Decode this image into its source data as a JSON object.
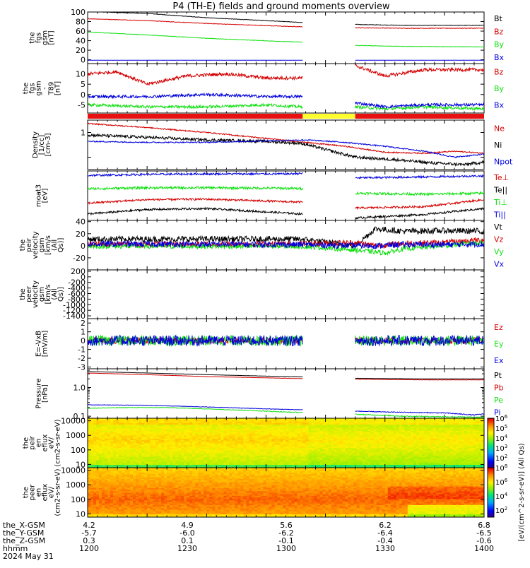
{
  "title": "P4 (TH-E) fields and ground moments overview",
  "colors": {
    "black": "#000000",
    "red": "#d40000",
    "green": "#10e010",
    "blue": "#0000dd",
    "yellow": "#ffff30",
    "mode_red": "#e81010"
  },
  "chart_data": [
    {
      "type": "line",
      "ylabel": "the fgs gsm [nT]",
      "ylim": [
        -8,
        100
      ],
      "yticks": [
        0,
        20,
        40,
        60,
        80,
        100
      ],
      "yticklabels": [
        "0",
        "20",
        "40",
        "60",
        "80",
        "100"
      ],
      "gap_minutes": [
        1308.5,
        1335.0
      ],
      "series": [
        {
          "name": "Bt",
          "color": "#000000",
          "x": [
            1200,
            1230,
            1260,
            1300,
            1308,
            1335,
            1360,
            1400
          ],
          "y": [
            101,
            97,
            88,
            80,
            78,
            74,
            72,
            72
          ],
          "noise": 0.5
        },
        {
          "name": "Bz",
          "color": "#d40000",
          "x": [
            1200,
            1230,
            1260,
            1300,
            1308,
            1335,
            1360,
            1400
          ],
          "y": [
            86,
            82,
            76,
            70,
            69,
            67,
            66,
            66
          ],
          "noise": 0.6
        },
        {
          "name": "By",
          "color": "#10e010",
          "x": [
            1200,
            1230,
            1260,
            1300,
            1308,
            1335,
            1360,
            1400
          ],
          "y": [
            58,
            52,
            45,
            38,
            37,
            30,
            28,
            27
          ],
          "noise": 0.5
        },
        {
          "name": "Bx",
          "color": "#0000dd",
          "x": [
            1200,
            1230,
            1260,
            1300,
            1308,
            1335,
            1360,
            1400
          ],
          "y": [
            -1,
            -1,
            -1,
            -1,
            -1,
            -1,
            -1,
            -1
          ],
          "noise": 0.2
        }
      ]
    },
    {
      "type": "line",
      "ylabel": "the fgs gsm - T89 [nT]",
      "ylim": [
        -9,
        15
      ],
      "yticks": [
        -5,
        0,
        5,
        10
      ],
      "yticklabels": [
        "-5",
        "0",
        "5",
        "10"
      ],
      "gap_minutes": [
        1308.5,
        1335.0
      ],
      "series": [
        {
          "name": "Bz",
          "color": "#d40000",
          "x": [
            1200,
            1215,
            1230,
            1250,
            1270,
            1290,
            1308,
            1335,
            1350,
            1370,
            1400
          ],
          "y": [
            10,
            11,
            5,
            9,
            10,
            8,
            8,
            14,
            9,
            12,
            12
          ],
          "noise": 0.8
        },
        {
          "name": "By",
          "color": "#10e010",
          "x": [
            1200,
            1230,
            1260,
            1290,
            1308,
            1335,
            1350,
            1370,
            1400
          ],
          "y": [
            -5,
            -6,
            -6,
            -5,
            -6,
            -6,
            -7,
            -6,
            -7
          ],
          "noise": 0.7
        },
        {
          "name": "Bx",
          "color": "#0000dd",
          "x": [
            1200,
            1230,
            1260,
            1290,
            1308,
            1335,
            1350,
            1370,
            1400
          ],
          "y": [
            -1,
            -1,
            0,
            -1,
            -1,
            -4,
            -6,
            -5,
            -5
          ],
          "noise": 0.7
        }
      ]
    },
    {
      "type": "mode_bar",
      "segments": [
        {
          "from": 1200,
          "to": 1308.5,
          "color": "#e81010"
        },
        {
          "from": 1308.5,
          "to": 1335.0,
          "color": "#ffff30"
        },
        {
          "from": 1335.0,
          "to": 1400,
          "color": "#e81010"
        }
      ]
    },
    {
      "type": "line",
      "ylabel": "Density [1/cc] [cm-3]",
      "ylim": [
        0.25,
        1.25
      ],
      "yticks": [
        0.5,
        1.0
      ],
      "yticklabels": [
        "",
        "1"
      ],
      "gap_minutes": [],
      "series": [
        {
          "name": "Ne",
          "color": "#d40000",
          "x": [
            1200,
            1230,
            1260,
            1290,
            1310,
            1330,
            1350,
            1370,
            1385,
            1400
          ],
          "y": [
            1.18,
            1.1,
            1.0,
            0.88,
            0.8,
            0.72,
            0.6,
            0.58,
            0.62,
            0.58
          ],
          "noise": 0.012
        },
        {
          "name": "Ni",
          "color": "#000000",
          "x": [
            1200,
            1230,
            1260,
            1290,
            1308,
            1335,
            1355,
            1375,
            1390,
            1400
          ],
          "y": [
            0.95,
            0.9,
            0.85,
            0.82,
            0.78,
            0.5,
            0.45,
            0.38,
            0.35,
            0.4
          ],
          "noise": 0.03
        },
        {
          "name": "Npot",
          "color": "#0000dd",
          "x": [
            1200,
            1230,
            1260,
            1290,
            1310,
            1330,
            1350,
            1370,
            1385,
            1400
          ],
          "y": [
            0.82,
            0.8,
            0.8,
            0.83,
            0.85,
            0.8,
            0.72,
            0.62,
            0.5,
            0.56
          ],
          "noise": 0.012
        }
      ]
    },
    {
      "type": "line",
      "ylabel": "moat3 [eV]",
      "ylim": [
        0,
        10
      ],
      "yticks": [],
      "yticklabels": [],
      "gap_minutes": [
        1308.5,
        1335.0
      ],
      "series": [
        {
          "name": "Te⊥",
          "color": "#d40000",
          "x": [
            1200,
            1230,
            1260,
            1300,
            1308,
            1335,
            1370,
            1400
          ],
          "y": [
            3.5,
            4.2,
            4.3,
            3.8,
            3.7,
            2.5,
            2.8,
            4.2
          ],
          "noise": 0.2
        },
        {
          "name": "Te||",
          "color": "#000000",
          "x": [
            1200,
            1230,
            1260,
            1300,
            1308,
            1335,
            1370,
            1400
          ],
          "y": [
            1.3,
            2.2,
            2.4,
            1.5,
            1.3,
            0.5,
            1.2,
            2.4
          ],
          "noise": 0.2
        },
        {
          "name": "Ti⊥",
          "color": "#10e010",
          "x": [
            1200,
            1230,
            1260,
            1300,
            1308,
            1335,
            1370,
            1400
          ],
          "y": [
            6.4,
            6.6,
            6.6,
            6.5,
            6.4,
            5.5,
            5.3,
            5.5
          ],
          "noise": 0.25
        },
        {
          "name": "Ti||",
          "color": "#0000dd",
          "x": [
            1200,
            1230,
            1260,
            1300,
            1308,
            1335,
            1370,
            1400
          ],
          "y": [
            9.1,
            9.3,
            9.4,
            9.4,
            9.5,
            8.6,
            8.8,
            9.0
          ],
          "noise": 0.2
        }
      ]
    },
    {
      "type": "line",
      "ylabel": "the peir velocity gsm [km/s (All Qs)]",
      "ylim": [
        -40,
        42
      ],
      "yticks": [
        -20,
        0,
        20,
        40
      ],
      "yticklabels": [
        "-20",
        "0",
        "20",
        "40"
      ],
      "gap_minutes": [],
      "series": [
        {
          "name": "Vt",
          "color": "#000000",
          "x": [
            1200,
            1308,
            1335,
            1345,
            1360,
            1380,
            1400
          ],
          "y": [
            11,
            11,
            0,
            28,
            24,
            25,
            24
          ],
          "noise": 5
        },
        {
          "name": "Vz",
          "color": "#d40000",
          "x": [
            1200,
            1308,
            1335,
            1345,
            1360,
            1380,
            1400
          ],
          "y": [
            2,
            3,
            5,
            0,
            4,
            5,
            10
          ],
          "noise": 5
        },
        {
          "name": "Vy",
          "color": "#10e010",
          "x": [
            1200,
            1308,
            1335,
            1350,
            1360,
            1380,
            1400
          ],
          "y": [
            -1,
            -1,
            -7,
            -12,
            -5,
            0,
            6
          ],
          "noise": 4
        },
        {
          "name": "Vx",
          "color": "#0000dd",
          "x": [
            1200,
            1308,
            1335,
            1345,
            1360,
            1380,
            1400
          ],
          "y": [
            3,
            2,
            0,
            0,
            2,
            2,
            3
          ],
          "noise": 5
        }
      ]
    },
    {
      "type": "line",
      "ylabel": "the peer velocity gsm [km/s (All Qs)]",
      "ylim": [
        -1500,
        250
      ],
      "yticks": [
        -1400,
        -1200,
        -1000,
        -800,
        -600,
        -400,
        -200,
        0,
        200
      ],
      "yticklabels": [
        "-1400",
        "-1200",
        "-1000",
        "-800",
        "-600",
        "-400",
        "-200",
        "0",
        "200"
      ],
      "gap_minutes": [],
      "series": [
        {
          "name": "Vt",
          "color": "#000000",
          "x": [],
          "y": []
        },
        {
          "name": "Vz",
          "color": "#d40000",
          "x": [],
          "y": []
        },
        {
          "name": "Vy",
          "color": "#10e010",
          "x": [],
          "y": []
        },
        {
          "name": "Vx",
          "color": "#0000dd",
          "x": [],
          "y": []
        }
      ]
    },
    {
      "type": "line",
      "ylabel": "E=-VxB [mV/m]",
      "ylim": [
        -3.2,
        2.5
      ],
      "yticks": [
        -3,
        -2,
        -1,
        0,
        1,
        2
      ],
      "yticklabels": [
        "-3",
        "-2",
        "-1",
        "0",
        "1",
        "2"
      ],
      "gap_minutes": [
        1308.5,
        1335.0
      ],
      "series": [
        {
          "name": "Ez",
          "color": "#d40000",
          "x": [
            1200,
            1308,
            1335,
            1400
          ],
          "y": [
            0,
            0,
            0,
            0
          ],
          "noise": 0.35
        },
        {
          "name": "Ey",
          "color": "#10e010",
          "x": [
            1200,
            1308,
            1335,
            1400
          ],
          "y": [
            0,
            0,
            0,
            0
          ],
          "noise": 0.6
        },
        {
          "name": "Ex",
          "color": "#0000dd",
          "x": [
            1200,
            1308,
            1335,
            1400
          ],
          "y": [
            0,
            0,
            0,
            0
          ],
          "noise": 0.6
        }
      ]
    },
    {
      "type": "line",
      "ylabel": "Pressure [nPa]",
      "yscale": "log",
      "ylim": [
        0.085,
        4.5
      ],
      "yticks": [
        0.1,
        1.0
      ],
      "yticklabels": [
        "0.1",
        "1.0"
      ],
      "gap_minutes": [
        1308.5,
        1335.0
      ],
      "series": [
        {
          "name": "Pt",
          "color": "#000000",
          "x": [
            1200,
            1230,
            1260,
            1300,
            1308,
            1335,
            1370,
            1400
          ],
          "y": [
            3.6,
            3.2,
            2.8,
            2.4,
            2.35,
            2.1,
            2.0,
            2.0
          ],
          "noise": 0.02
        },
        {
          "name": "Pb",
          "color": "#d40000",
          "x": [
            1200,
            1230,
            1260,
            1300,
            1308,
            1335,
            1370,
            1400
          ],
          "y": [
            3.2,
            2.8,
            2.4,
            2.1,
            2.05,
            1.95,
            1.85,
            1.85
          ],
          "noise": 0.02
        },
        {
          "name": "Pe",
          "color": "#10e010",
          "x": [
            1200,
            1220,
            1240,
            1270,
            1300,
            1330,
            1360,
            1385,
            1400
          ],
          "y": [
            0.19,
            0.2,
            0.2,
            0.17,
            0.14,
            0.12,
            0.1,
            0.095,
            0.09
          ],
          "noise": 0.004
        },
        {
          "name": "Pi",
          "color": "#0000dd",
          "x": [
            1200,
            1230,
            1260,
            1290,
            1320,
            1350,
            1380,
            1395,
            1400
          ],
          "y": [
            0.25,
            0.24,
            0.21,
            0.18,
            0.16,
            0.14,
            0.13,
            0.11,
            0.12
          ],
          "noise": 0.004
        }
      ]
    },
    {
      "type": "heatmap",
      "ylabel": "the peir en eflux eV/ (cm2-s-sr-eV)",
      "yscale": "log",
      "ylim": [
        6,
        15000
      ],
      "yticks": [
        10,
        100,
        1000,
        10000
      ],
      "yticklabels": [
        "10",
        "100",
        "1000",
        "10000"
      ],
      "zlabel": "[eV/(cm^2-s-sr-eV)] (All Qs)",
      "zlim_exp": [
        1,
        6
      ],
      "ztick_exps": [
        2,
        3,
        4,
        5,
        6
      ],
      "note": "energy-time spectrogram, mostly yellow/orange with red at highest energies"
    },
    {
      "type": "heatmap",
      "ylabel": "the peer en eflux eV/ (cm2-s-sr-eV)",
      "yscale": "log",
      "ylim": [
        6,
        15000
      ],
      "yticks": [
        10,
        100,
        1000,
        10000
      ],
      "yticklabels": [
        "10",
        "100",
        "1000",
        "10000"
      ],
      "zlabel": "[eV/(cm^2-s-sr-eV)] (All Qs)",
      "zlim_exp": [
        1,
        8
      ],
      "ztick_exps": [
        2,
        4,
        6,
        8
      ],
      "note": "energy-time spectrogram, mostly red/orange"
    }
  ],
  "xaxis": {
    "row_labels": [
      "the_X-GSM",
      "the_Y-GSM",
      "the_Z-GSM",
      "hhmm",
      "2024 May 31"
    ],
    "ticks": [
      {
        "minute": 1200,
        "vals": [
          "4.2",
          "-5.7",
          "0.3",
          "1200"
        ]
      },
      {
        "minute": 1230,
        "vals": [
          "4.9",
          "-6.0",
          "0.1",
          "1230"
        ]
      },
      {
        "minute": 1260,
        "vals": [
          "5.6",
          "-6.2",
          "-0.1",
          "1300"
        ]
      },
      {
        "minute": 1290,
        "vals": [
          "6.2",
          "-6.4",
          "-0.4",
          "1330"
        ]
      },
      {
        "minute": 1320,
        "vals": [
          "6.8",
          "-6.5",
          "-0.6",
          "1400"
        ]
      }
    ]
  }
}
